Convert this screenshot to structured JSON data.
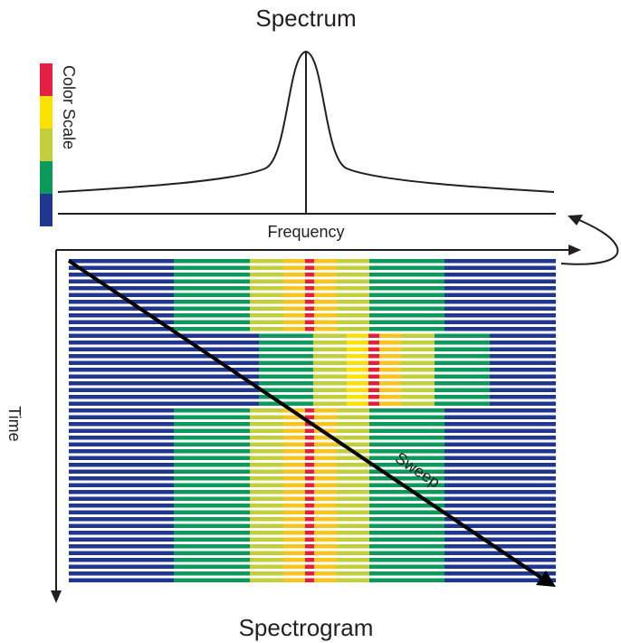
{
  "title": "Spectrum",
  "frequency_label": "Frequency",
  "color_scale_label": "Color Scale",
  "time_label": "Time",
  "sweep_label": "Sweep",
  "caption": "Spectrogram",
  "palette": {
    "navy": "#21368f",
    "green": "#0b9a5b",
    "yellowgreen": "#c2cf3a",
    "yellow": "#fbe100",
    "gold": "#f7c51c",
    "red": "#e41f43",
    "ink": "#231f20"
  },
  "color_scale": [
    "red",
    "yellow",
    "yellowgreen",
    "green",
    "navy"
  ],
  "spectrogram": {
    "bands": [
      {
        "rows": 11,
        "segments": [
          {
            "color": "navy",
            "width": 116
          },
          {
            "color": "green",
            "width": 84
          },
          {
            "color": "yellowgreen",
            "width": 37
          },
          {
            "color": "gold",
            "width": 24
          },
          {
            "color": "red",
            "width": 10
          },
          {
            "color": "gold",
            "width": 25
          },
          {
            "color": "yellowgreen",
            "width": 36
          },
          {
            "color": "green",
            "width": 83
          },
          {
            "color": "navy",
            "width": 123
          }
        ]
      },
      {
        "rows": 11,
        "segments": [
          {
            "color": "navy",
            "width": 210
          },
          {
            "color": "green",
            "width": 60
          },
          {
            "color": "yellowgreen",
            "width": 37
          },
          {
            "color": "yellow",
            "width": 24
          },
          {
            "color": "red",
            "width": 12
          },
          {
            "color": "gold",
            "width": 24
          },
          {
            "color": "yellowgreen",
            "width": 37
          },
          {
            "color": "green",
            "width": 61
          },
          {
            "color": "navy",
            "width": 73
          }
        ]
      },
      {
        "rows": 26,
        "segments": [
          {
            "color": "navy",
            "width": 116
          },
          {
            "color": "green",
            "width": 84
          },
          {
            "color": "yellowgreen",
            "width": 37
          },
          {
            "color": "gold",
            "width": 24
          },
          {
            "color": "red",
            "width": 10
          },
          {
            "color": "gold",
            "width": 25
          },
          {
            "color": "yellowgreen",
            "width": 36
          },
          {
            "color": "green",
            "width": 83
          },
          {
            "color": "navy",
            "width": 123
          }
        ]
      }
    ]
  }
}
